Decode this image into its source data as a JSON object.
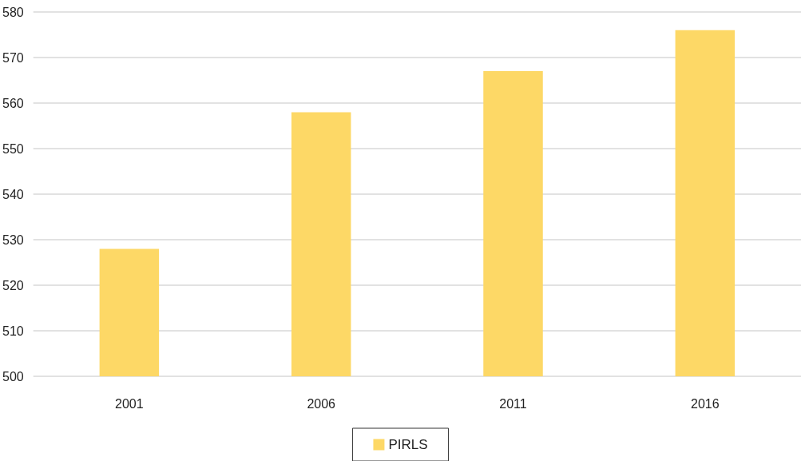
{
  "chart_data": {
    "type": "bar",
    "categories": [
      "2001",
      "2006",
      "2011",
      "2016"
    ],
    "series": [
      {
        "name": "PIRLS",
        "color": "#fdd866",
        "values": [
          528,
          558,
          567,
          576
        ]
      }
    ],
    "ylim": [
      500,
      580
    ],
    "yticks": [
      500,
      510,
      520,
      530,
      540,
      550,
      560,
      570,
      580
    ],
    "grid": "y",
    "legend": "bottom"
  }
}
